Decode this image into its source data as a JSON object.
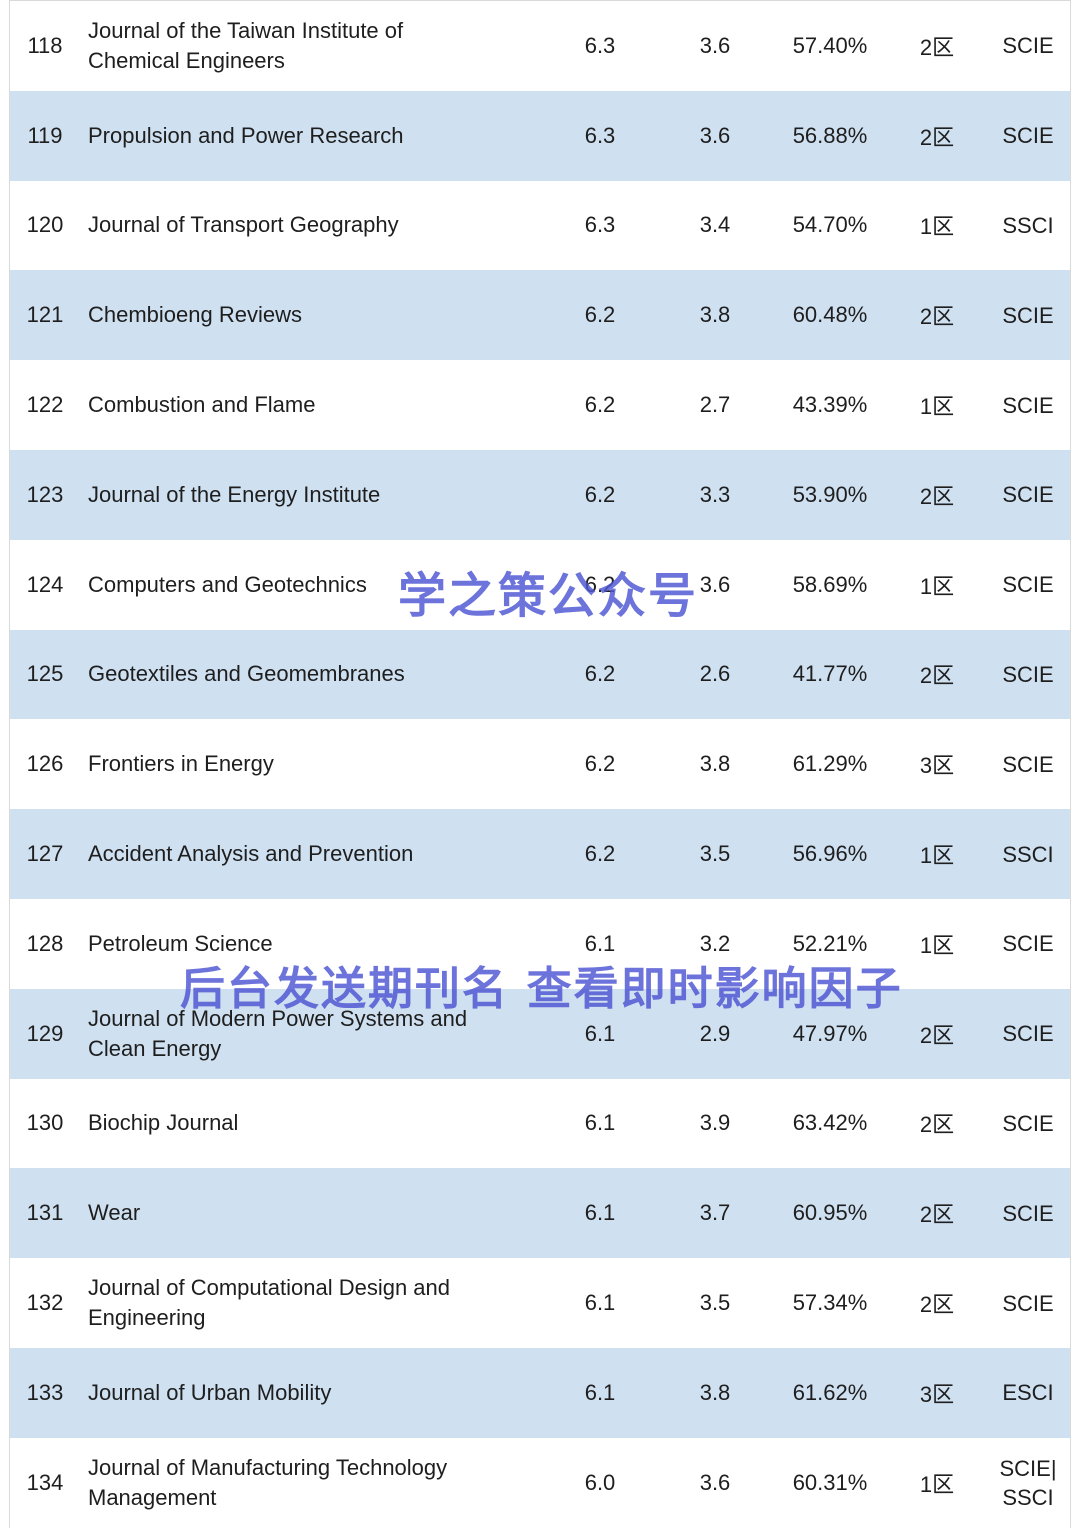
{
  "colors": {
    "row_alt_background": "#cfe0f1",
    "text": "#1e1e1e",
    "watermark": "#4d55d2",
    "border": "#d9d9d9",
    "page_background": "#ffffff"
  },
  "watermarks": {
    "center": "学之策公众号",
    "lower": "后台发送期刊名 查看即时影响因子"
  },
  "chart_data": {
    "type": "table",
    "grid": "alternating-row-shading",
    "rows": [
      [
        "118",
        "Journal of the Taiwan Institute of Chemical Engineers",
        "6.3",
        "3.6",
        "57.40%",
        "2区",
        "SCIE"
      ],
      [
        "119",
        "Propulsion and Power Research",
        "6.3",
        "3.6",
        "56.88%",
        "2区",
        "SCIE"
      ],
      [
        "120",
        "Journal of Transport Geography",
        "6.3",
        "3.4",
        "54.70%",
        "1区",
        "SSCI"
      ],
      [
        "121",
        "Chembioeng Reviews",
        "6.2",
        "3.8",
        "60.48%",
        "2区",
        "SCIE"
      ],
      [
        "122",
        "Combustion and Flame",
        "6.2",
        "2.7",
        "43.39%",
        "1区",
        "SCIE"
      ],
      [
        "123",
        "Journal of the Energy Institute",
        "6.2",
        "3.3",
        "53.90%",
        "2区",
        "SCIE"
      ],
      [
        "124",
        "Computers and Geotechnics",
        "6.2",
        "3.6",
        "58.69%",
        "1区",
        "SCIE"
      ],
      [
        "125",
        "Geotextiles and Geomembranes",
        "6.2",
        "2.6",
        "41.77%",
        "2区",
        "SCIE"
      ],
      [
        "126",
        "Frontiers in Energy",
        "6.2",
        "3.8",
        "61.29%",
        "3区",
        "SCIE"
      ],
      [
        "127",
        "Accident Analysis and Prevention",
        "6.2",
        "3.5",
        "56.96%",
        "1区",
        "SSCI"
      ],
      [
        "128",
        "Petroleum Science",
        "6.1",
        "3.2",
        "52.21%",
        "1区",
        "SCIE"
      ],
      [
        "129",
        "Journal of Modern Power Systems and Clean Energy",
        "6.1",
        "2.9",
        "47.97%",
        "2区",
        "SCIE"
      ],
      [
        "130",
        "Biochip Journal",
        "6.1",
        "3.9",
        "63.42%",
        "2区",
        "SCIE"
      ],
      [
        "131",
        "Wear",
        "6.1",
        "3.7",
        "60.95%",
        "2区",
        "SCIE"
      ],
      [
        "132",
        "Journal of Computational Design and Engineering",
        "6.1",
        "3.5",
        "57.34%",
        "2区",
        "SCIE"
      ],
      [
        "133",
        "Journal of Urban Mobility",
        "6.1",
        "3.8",
        "61.62%",
        "3区",
        "ESCI"
      ],
      [
        "134",
        "Journal of Manufacturing Technology Management",
        "6.0",
        "3.6",
        "60.31%",
        "1区",
        "SCIE|\nSSCI"
      ]
    ]
  }
}
